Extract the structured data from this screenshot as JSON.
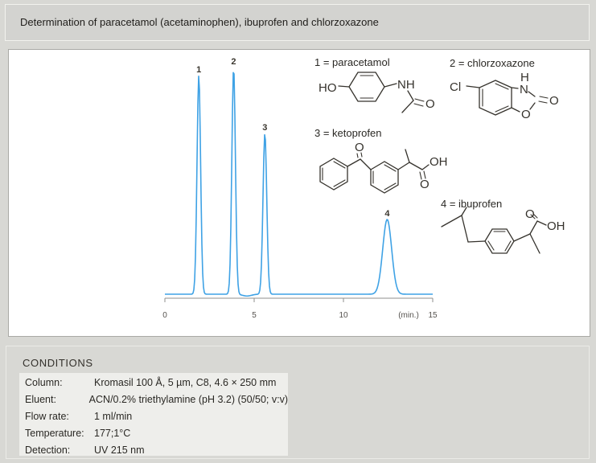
{
  "header": {
    "title": "Determination of paracetamol (acetaminophen), ibuprofen and chlorzoxazone"
  },
  "chart_data": {
    "type": "line",
    "title": "",
    "xlabel": "(min.)",
    "ylabel": "",
    "xlim": [
      0,
      15
    ],
    "x_tick_values": [
      0,
      5,
      10,
      15
    ],
    "x_ticks": [
      "0",
      "5",
      "10",
      "15"
    ],
    "grid": false,
    "line_color": "#3fa2e5",
    "axis_color": "#8f8f8c",
    "peaks": [
      {
        "label": "1",
        "compound": "paracetamol",
        "retention_min": 1.9,
        "rel_height": 0.965,
        "sigma_min": 0.1
      },
      {
        "label": "2",
        "compound": "chlorzoxazone",
        "retention_min": 3.85,
        "rel_height": 1.0,
        "sigma_min": 0.1
      },
      {
        "label": "3",
        "compound": "ketoprofen",
        "retention_min": 5.6,
        "rel_height": 0.71,
        "sigma_min": 0.105
      },
      {
        "label": "4",
        "compound": "ibuprofen",
        "retention_min": 12.45,
        "rel_height": 0.33,
        "sigma_min": 0.25
      }
    ],
    "baseline_features": [
      {
        "retention_min": 4.6,
        "rel_height": -0.008,
        "sigma_min": 0.25
      }
    ]
  },
  "structures": [
    {
      "label": "1 = paracetamol",
      "atoms": {
        "hydroxyl": "HO",
        "amide_nh": "NH",
        "carbonyl_o": "O"
      }
    },
    {
      "label": "2 = chlorzoxazone",
      "atoms": {
        "chloro": "Cl",
        "nh_h": "H",
        "ring_n": "N",
        "carbonyl_o": "O",
        "ring_o": "O"
      }
    },
    {
      "label": "3 = ketoprofen",
      "atoms": {
        "ketone_o": "O",
        "acid_oh": "OH",
        "acid_o": "O"
      }
    },
    {
      "label": "4 = ibuprofen",
      "atoms": {
        "acid_o": "O",
        "acid_oh": "OH"
      }
    }
  ],
  "conditions": {
    "title": "CONDITIONS",
    "rows": [
      {
        "label": "Column:",
        "value": "Kromasil 100 Å, 5 µm, C8, 4.6 × 250 mm"
      },
      {
        "label": "Eluent:",
        "value": "ACN/0.2% triethylamine (pH 3.2) (50/50; v:v)"
      },
      {
        "label": "Flow rate:",
        "value": "1 ml/min"
      },
      {
        "label": "Temperature:",
        "value": "177;1°C"
      },
      {
        "label": "Detection:",
        "value": "UV 215 nm"
      }
    ]
  }
}
